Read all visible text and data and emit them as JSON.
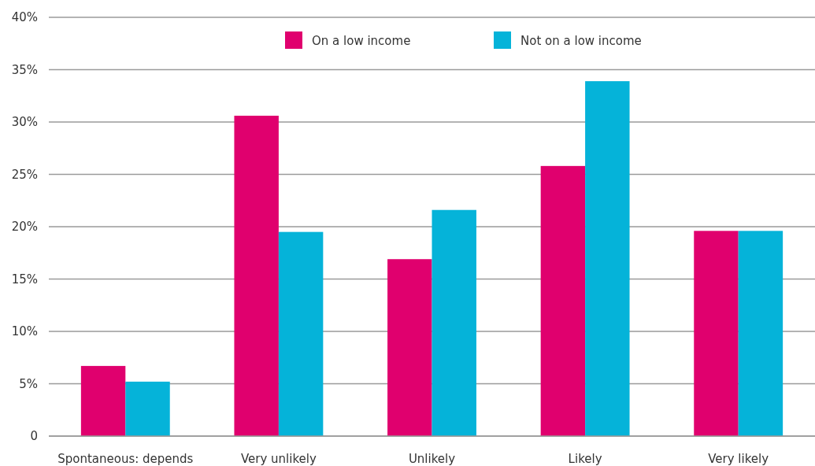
{
  "chart_data": {
    "type": "bar",
    "categories": [
      "Spontaneous: depends",
      "Very unlikely",
      "Unlikely",
      "Likely",
      "Very likely"
    ],
    "series": [
      {
        "name": "On a low income",
        "color": "#e0006e",
        "values": [
          6.7,
          30.6,
          16.9,
          25.8,
          19.6
        ]
      },
      {
        "name": "Not on a low income",
        "color": "#05b3d9",
        "values": [
          5.2,
          19.5,
          21.6,
          33.9,
          19.6
        ]
      }
    ],
    "ylim": [
      0,
      40
    ],
    "yticks": [
      {
        "value": 0,
        "label": "0"
      },
      {
        "value": 5,
        "label": "5%"
      },
      {
        "value": 10,
        "label": "10%"
      },
      {
        "value": 15,
        "label": "15%"
      },
      {
        "value": 20,
        "label": "20%"
      },
      {
        "value": 25,
        "label": "25%"
      },
      {
        "value": 30,
        "label": "30%"
      },
      {
        "value": 35,
        "label": "35%"
      },
      {
        "value": 40,
        "label": "40%"
      }
    ],
    "grid": "y",
    "legend": "top"
  }
}
